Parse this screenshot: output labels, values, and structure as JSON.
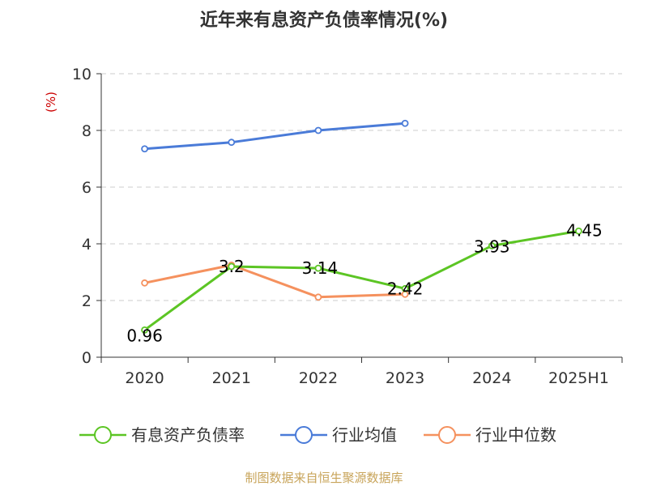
{
  "chart_data": {
    "type": "line",
    "title": "近年来有息资产负债率情况(%)",
    "unit_label": "(%)",
    "categories": [
      "2020",
      "2021",
      "2022",
      "2023",
      "2024",
      "2025H1"
    ],
    "ylim": [
      0,
      10
    ],
    "yticks": [
      0,
      2,
      4,
      6,
      8,
      10
    ],
    "grid": true,
    "legend_position": "bottom",
    "series": [
      {
        "name": "有息资产负债率",
        "color": "#5cc524",
        "values": [
          0.96,
          3.2,
          3.14,
          2.42,
          3.93,
          4.45
        ],
        "labels": [
          "0.96",
          "3.2",
          "3.14",
          "2.42",
          "3.93",
          "4.45"
        ]
      },
      {
        "name": "行业均值",
        "color": "#4a7bd8",
        "values": [
          7.35,
          7.58,
          8.0,
          8.25,
          null,
          null
        ]
      },
      {
        "name": "行业中位数",
        "color": "#f5915e",
        "values": [
          2.62,
          3.25,
          2.12,
          2.22,
          null,
          null
        ]
      }
    ]
  },
  "source": "制图数据来自恒生聚源数据库"
}
